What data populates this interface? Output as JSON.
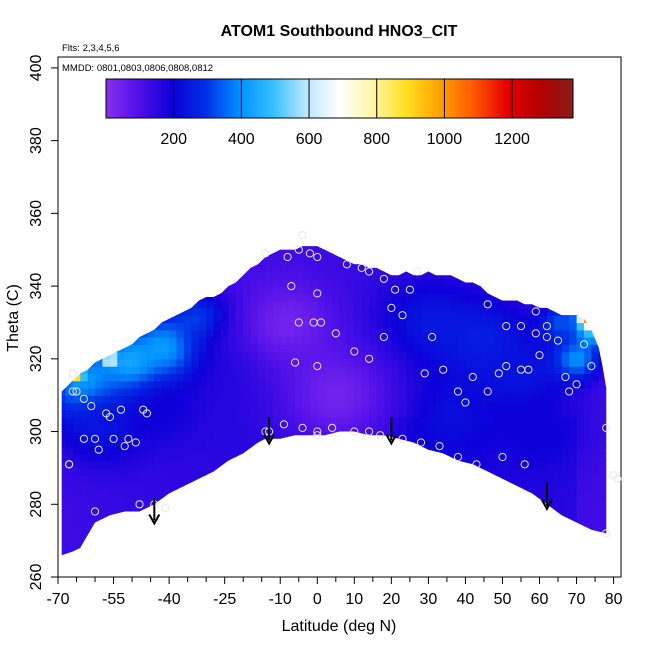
{
  "chart_data": {
    "type": "heatmap",
    "title": "ATOM1 Southbound HNO3_CIT",
    "flights_label": "Flts: 2,3,4,5,6",
    "dates_label": "MMDD: 0801,0803,0806,0808,0812",
    "xlabel": "Latitude (deg N)",
    "ylabel": "Theta (C)",
    "xlim": [
      -70,
      82
    ],
    "ylim": [
      260,
      403
    ],
    "x_ticks": [
      -70,
      -55,
      -40,
      -25,
      -10,
      0,
      10,
      20,
      30,
      40,
      50,
      60,
      70,
      80
    ],
    "x_tick_labels": [
      "-70",
      "-55",
      "-40",
      "-25",
      "-10",
      "0",
      "10",
      "20",
      "30",
      "40",
      "50",
      "60",
      "70",
      "80"
    ],
    "x_minor_ticks": [
      -65,
      -60,
      -50,
      -45,
      -35,
      -30,
      -20,
      -15,
      -5,
      5,
      15,
      25,
      35,
      45,
      55,
      65,
      75
    ],
    "y_ticks": [
      260,
      280,
      300,
      320,
      340,
      360,
      380,
      400
    ],
    "y_tick_labels": [
      "260",
      "280",
      "300",
      "320",
      "340",
      "360",
      "380",
      "400"
    ],
    "colorbar": {
      "min": 0,
      "max": 1380,
      "ticks": [
        200,
        400,
        600,
        800,
        1000,
        1200
      ],
      "tick_labels": [
        "200",
        "400",
        "600",
        "800",
        "1000",
        "1200"
      ],
      "colors": [
        "#8b2ff0",
        "#4e0fe8",
        "#0d00d8",
        "#0030e6",
        "#0090ff",
        "#35bfff",
        "#bde6ff",
        "#ffffff",
        "#fff6a8",
        "#ffe020",
        "#ffa200",
        "#ff5a00",
        "#e60000",
        "#b20000",
        "#8a1c1c"
      ]
    },
    "domain_top": [
      [
        -69,
        311
      ],
      [
        -68,
        312
      ],
      [
        -66,
        314
      ],
      [
        -64,
        316
      ],
      [
        -62,
        317
      ],
      [
        -60,
        319
      ],
      [
        -58,
        320
      ],
      [
        -56,
        321
      ],
      [
        -54,
        322
      ],
      [
        -52,
        323
      ],
      [
        -50,
        324
      ],
      [
        -48,
        326
      ],
      [
        -46,
        327
      ],
      [
        -44,
        328
      ],
      [
        -42,
        330
      ],
      [
        -40,
        331
      ],
      [
        -38,
        332
      ],
      [
        -36,
        333
      ],
      [
        -34,
        334
      ],
      [
        -32,
        336
      ],
      [
        -30,
        337
      ],
      [
        -28,
        337
      ],
      [
        -26,
        338
      ],
      [
        -24,
        340
      ],
      [
        -22,
        341
      ],
      [
        -20,
        343
      ],
      [
        -18,
        345
      ],
      [
        -16,
        346
      ],
      [
        -14,
        348
      ],
      [
        -12,
        349
      ],
      [
        -10,
        350
      ],
      [
        -8,
        350
      ],
      [
        -6,
        350
      ],
      [
        -4,
        351
      ],
      [
        -2,
        351
      ],
      [
        0,
        351
      ],
      [
        2,
        350
      ],
      [
        4,
        349
      ],
      [
        6,
        348
      ],
      [
        8,
        347
      ],
      [
        10,
        346
      ],
      [
        12,
        346
      ],
      [
        14,
        345
      ],
      [
        16,
        345
      ],
      [
        18,
        344
      ],
      [
        20,
        343
      ],
      [
        22,
        343
      ],
      [
        24,
        344
      ],
      [
        26,
        343
      ],
      [
        28,
        343
      ],
      [
        30,
        344
      ],
      [
        32,
        343
      ],
      [
        34,
        343
      ],
      [
        36,
        343
      ],
      [
        38,
        342
      ],
      [
        40,
        341
      ],
      [
        42,
        341
      ],
      [
        44,
        340
      ],
      [
        46,
        338
      ],
      [
        48,
        337
      ],
      [
        50,
        336
      ],
      [
        52,
        336
      ],
      [
        54,
        336
      ],
      [
        56,
        335
      ],
      [
        58,
        335
      ],
      [
        60,
        334
      ],
      [
        62,
        334
      ],
      [
        64,
        333
      ],
      [
        66,
        332
      ],
      [
        68,
        332
      ],
      [
        70,
        332
      ],
      [
        72,
        331
      ],
      [
        74,
        328
      ],
      [
        76,
        323
      ],
      [
        77,
        318
      ],
      [
        78,
        312
      ],
      [
        78,
        303
      ]
    ],
    "domain_bottom": [
      [
        78,
        272
      ],
      [
        74,
        273
      ],
      [
        70,
        275
      ],
      [
        66,
        277
      ],
      [
        62,
        280
      ],
      [
        58,
        283
      ],
      [
        54,
        285
      ],
      [
        50,
        287
      ],
      [
        46,
        289
      ],
      [
        42,
        291
      ],
      [
        38,
        292
      ],
      [
        34,
        294
      ],
      [
        30,
        295
      ],
      [
        26,
        297
      ],
      [
        22,
        298
      ],
      [
        18,
        299
      ],
      [
        14,
        299
      ],
      [
        10,
        300
      ],
      [
        6,
        300
      ],
      [
        2,
        299
      ],
      [
        -2,
        299
      ],
      [
        -6,
        299
      ],
      [
        -10,
        298
      ],
      [
        -14,
        298
      ],
      [
        -16,
        297
      ],
      [
        -20,
        294
      ],
      [
        -24,
        292
      ],
      [
        -28,
        289
      ],
      [
        -32,
        287
      ],
      [
        -36,
        285
      ],
      [
        -40,
        283
      ],
      [
        -44,
        280
      ],
      [
        -48,
        278
      ],
      [
        -52,
        278
      ],
      [
        -56,
        277
      ],
      [
        -60,
        275
      ],
      [
        -64,
        268
      ],
      [
        -66,
        267
      ],
      [
        -69,
        266
      ]
    ],
    "field_hotspots": [
      {
        "lat": -62,
        "theta": 312,
        "value": 480,
        "radius_deg": 10
      },
      {
        "lat": -50,
        "theta": 318,
        "value": 470,
        "radius_deg": 10
      },
      {
        "lat": -40,
        "theta": 323,
        "value": 460,
        "radius_deg": 9
      },
      {
        "lat": -31,
        "theta": 330,
        "value": 380,
        "radius_deg": 8
      },
      {
        "lat": -58,
        "theta": 302,
        "value": 240,
        "radius_deg": 12
      },
      {
        "lat": -42,
        "theta": 306,
        "value": 200,
        "radius_deg": 10
      },
      {
        "lat": -20,
        "theta": 322,
        "value": 180,
        "radius_deg": 14
      },
      {
        "lat": 30,
        "theta": 330,
        "value": 240,
        "radius_deg": 14
      },
      {
        "lat": 45,
        "theta": 325,
        "value": 260,
        "radius_deg": 14
      },
      {
        "lat": 55,
        "theta": 315,
        "value": 240,
        "radius_deg": 12
      },
      {
        "lat": 35,
        "theta": 305,
        "value": 230,
        "radius_deg": 12
      },
      {
        "lat": 60,
        "theta": 300,
        "value": 200,
        "radius_deg": 12
      },
      {
        "lat": 70,
        "theta": 320,
        "value": 400,
        "radius_deg": 6
      },
      {
        "lat": 74,
        "theta": 328,
        "value": 520,
        "radius_deg": 5
      },
      {
        "lat": 66,
        "theta": 330,
        "value": 330,
        "radius_deg": 6
      },
      {
        "lat": 73,
        "theta": 331,
        "value": 900,
        "radius_deg": 2.5
      },
      {
        "lat": 75,
        "theta": 331,
        "value": 1200,
        "radius_deg": 2.0
      },
      {
        "lat": -65,
        "theta": 316,
        "value": 1250,
        "radius_deg": 1.5
      },
      {
        "lat": -56,
        "theta": 320,
        "value": 900,
        "radius_deg": 1.5
      },
      {
        "lat": 5,
        "theta": 310,
        "value": 40,
        "radius_deg": 16
      },
      {
        "lat": -8,
        "theta": 330,
        "value": 40,
        "radius_deg": 14
      }
    ],
    "observation_points": [
      [
        -66,
        316
      ],
      [
        -66,
        311
      ],
      [
        -65,
        311
      ],
      [
        -63,
        309
      ],
      [
        -67,
        291
      ],
      [
        -67,
        291
      ],
      [
        -63,
        298
      ],
      [
        -60,
        298
      ],
      [
        -59,
        295
      ],
      [
        -60,
        278
      ],
      [
        -61,
        307
      ],
      [
        -57,
        305
      ],
      [
        -56,
        304
      ],
      [
        -55,
        298
      ],
      [
        -53,
        306
      ],
      [
        -52,
        296
      ],
      [
        -51,
        298
      ],
      [
        -49,
        297
      ],
      [
        -47,
        306
      ],
      [
        -46,
        305
      ],
      [
        -44,
        280
      ],
      [
        -48,
        280
      ],
      [
        -41,
        279
      ],
      [
        -9,
        302
      ],
      [
        -13,
        300
      ],
      [
        -14,
        300
      ],
      [
        -4,
        301
      ],
      [
        0,
        300
      ],
      [
        0,
        299
      ],
      [
        4,
        301
      ],
      [
        10,
        300
      ],
      [
        14,
        300
      ],
      [
        17,
        299
      ],
      [
        -6,
        319
      ],
      [
        0,
        318
      ],
      [
        5,
        327
      ],
      [
        10,
        322
      ],
      [
        14,
        320
      ],
      [
        18,
        326
      ],
      [
        -1,
        330
      ],
      [
        1,
        330
      ],
      [
        -5,
        330
      ],
      [
        -7,
        340
      ],
      [
        0,
        338
      ],
      [
        0,
        348
      ],
      [
        -5,
        350
      ],
      [
        -8,
        348
      ],
      [
        -2,
        349
      ],
      [
        12,
        345
      ],
      [
        14,
        344
      ],
      [
        8,
        346
      ],
      [
        18,
        342
      ],
      [
        20,
        334
      ],
      [
        23,
        332
      ],
      [
        21,
        339
      ],
      [
        25,
        339
      ],
      [
        27,
        344
      ],
      [
        31,
        326
      ],
      [
        29,
        316
      ],
      [
        34,
        317
      ],
      [
        40,
        308
      ],
      [
        38,
        311
      ],
      [
        42,
        315
      ],
      [
        43,
        291
      ],
      [
        46,
        311
      ],
      [
        49,
        316
      ],
      [
        51,
        318
      ],
      [
        55,
        317
      ],
      [
        57,
        317
      ],
      [
        50,
        293
      ],
      [
        56,
        291
      ],
      [
        60,
        321
      ],
      [
        62,
        326
      ],
      [
        65,
        325
      ],
      [
        67,
        315
      ],
      [
        68,
        311
      ],
      [
        70,
        313
      ],
      [
        72,
        324
      ],
      [
        74,
        318
      ],
      [
        78,
        301
      ],
      [
        80,
        288
      ],
      [
        81,
        287
      ],
      [
        78,
        272
      ],
      [
        38,
        293
      ],
      [
        33,
        296
      ],
      [
        28,
        297
      ],
      [
        23,
        298
      ],
      [
        51,
        329
      ],
      [
        46,
        335
      ],
      [
        55,
        329
      ],
      [
        59,
        327
      ],
      [
        62,
        329
      ],
      [
        59,
        333
      ],
      [
        -4,
        354
      ],
      [
        -14,
        349
      ]
    ],
    "arrows": [
      {
        "lat": -44,
        "theta_top": 282,
        "theta_bottom": 275
      },
      {
        "lat": -13,
        "theta_top": 304,
        "theta_bottom": 297
      },
      {
        "lat": 20,
        "theta_top": 304,
        "theta_bottom": 297
      },
      {
        "lat": 62,
        "theta_top": 286,
        "theta_bottom": 279
      }
    ]
  }
}
